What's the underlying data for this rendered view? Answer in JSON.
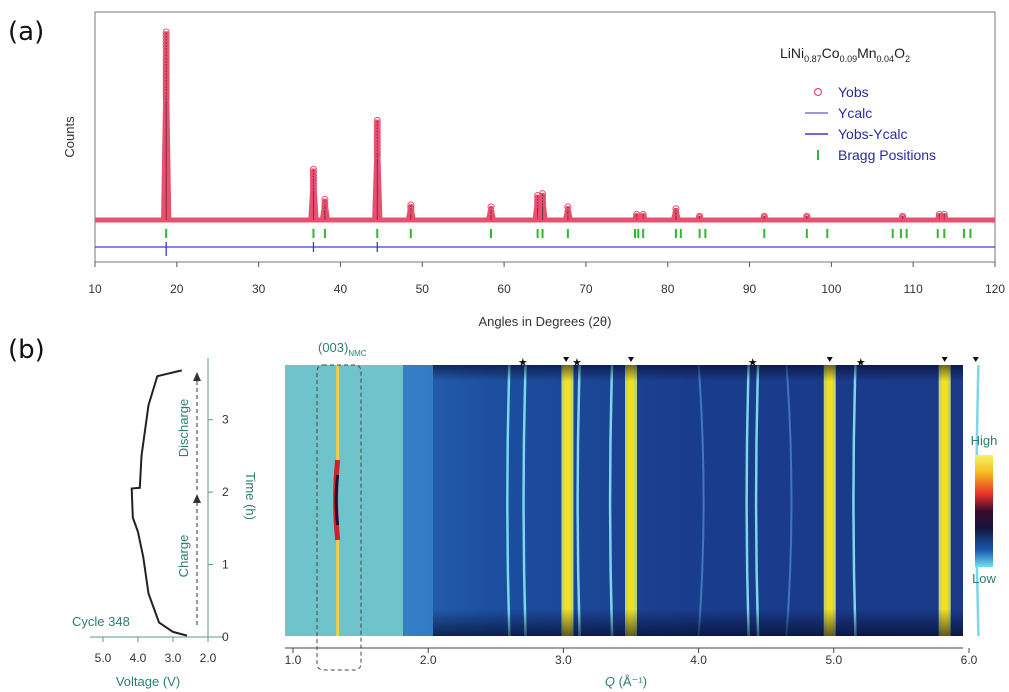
{
  "chart_data": [
    {
      "type": "line",
      "panel_label": "(a)",
      "xlabel": "Angles in Degrees (2θ)",
      "ylabel": "Counts",
      "xlim": [
        10,
        120
      ],
      "xticks": [
        10,
        20,
        30,
        40,
        50,
        60,
        70,
        80,
        90,
        100,
        110,
        120
      ],
      "compound": {
        "base": "LiNi",
        "s1": "0.87",
        "mid1": "Co",
        "s2": "0.09",
        "mid2": "Mn",
        "s3": "0.04",
        "end": "O",
        "s4": "2"
      },
      "legend": [
        "Yobs",
        "Ycalc",
        "Yobs-Ycalc",
        "Bragg Positions"
      ],
      "colors": {
        "yobs": "#e8506e",
        "ycalc": "#7a2a4a",
        "diff": "#3a3ad0",
        "bragg": "#2fb82f"
      },
      "peaks": [
        {
          "x": 18.7,
          "y": 1.0
        },
        {
          "x": 36.7,
          "y": 0.27
        },
        {
          "x": 38.1,
          "y": 0.11
        },
        {
          "x": 44.5,
          "y": 0.53
        },
        {
          "x": 48.6,
          "y": 0.08
        },
        {
          "x": 58.4,
          "y": 0.07
        },
        {
          "x": 64.1,
          "y": 0.13
        },
        {
          "x": 64.7,
          "y": 0.14
        },
        {
          "x": 67.8,
          "y": 0.07
        },
        {
          "x": 76.2,
          "y": 0.03
        },
        {
          "x": 77.0,
          "y": 0.03
        },
        {
          "x": 81.0,
          "y": 0.06
        },
        {
          "x": 83.9,
          "y": 0.02
        },
        {
          "x": 91.8,
          "y": 0.02
        },
        {
          "x": 97.0,
          "y": 0.02
        },
        {
          "x": 108.7,
          "y": 0.02
        },
        {
          "x": 113.2,
          "y": 0.03
        },
        {
          "x": 113.8,
          "y": 0.03
        }
      ],
      "bragg_positions": [
        18.7,
        36.7,
        38.1,
        44.5,
        48.6,
        58.4,
        64.1,
        64.7,
        67.8,
        76.0,
        76.4,
        77.0,
        81.0,
        81.6,
        83.9,
        84.6,
        91.8,
        97.0,
        99.5,
        107.5,
        108.5,
        109.2,
        113.0,
        113.8,
        116.2,
        117.0
      ]
    },
    {
      "type": "line",
      "panel_label": "(b)",
      "xlabel": "Voltage (V)",
      "ylabel": "Time (h)",
      "xlim": [
        5.0,
        2.0
      ],
      "ylim": [
        0,
        3.7
      ],
      "xticks": [
        "5.0",
        "4.0",
        "3.0",
        "2.0"
      ],
      "yticks": [
        "0",
        "1",
        "2",
        "3"
      ],
      "annotations": {
        "cycle": "Cycle 348",
        "charge": "Charge",
        "discharge": "Discharge"
      },
      "curve": [
        {
          "v": 2.6,
          "t": 0.02
        },
        {
          "v": 3.0,
          "t": 0.07
        },
        {
          "v": 3.4,
          "t": 0.2
        },
        {
          "v": 3.7,
          "t": 0.6
        },
        {
          "v": 3.85,
          "t": 1.1
        },
        {
          "v": 4.0,
          "t": 1.45
        },
        {
          "v": 4.15,
          "t": 1.65
        },
        {
          "v": 4.18,
          "t": 2.05
        },
        {
          "v": 3.95,
          "t": 2.06
        },
        {
          "v": 3.9,
          "t": 2.5
        },
        {
          "v": 3.7,
          "t": 3.2
        },
        {
          "v": 3.45,
          "t": 3.6
        },
        {
          "v": 2.75,
          "t": 3.68
        }
      ]
    },
    {
      "type": "heatmap",
      "xlabel": "Q (Å⁻¹)",
      "xlabel_parts": {
        "sym": "Q",
        "unit": " (Å⁻¹)"
      },
      "xlim": [
        0.85,
        6.2
      ],
      "xticks": [
        "1.0",
        "2.0",
        "3.0",
        "4.0",
        "5.0",
        "6.0"
      ],
      "annotation": {
        "base": "(003)",
        "sub": "NMC"
      },
      "colorbar": {
        "high": "High",
        "low": "Low"
      },
      "lines": [
        {
          "q": 1.33,
          "kind": "red"
        },
        {
          "q": 2.6,
          "kind": "cyan"
        },
        {
          "q": 2.72,
          "kind": "cyan"
        },
        {
          "q": 3.03,
          "kind": "yellow"
        },
        {
          "q": 3.12,
          "kind": "cyan"
        },
        {
          "q": 3.36,
          "kind": "cyan"
        },
        {
          "q": 3.5,
          "kind": "yellow"
        },
        {
          "q": 4.0,
          "kind": "faint"
        },
        {
          "q": 4.37,
          "kind": "cyan"
        },
        {
          "q": 4.44,
          "kind": "cyan"
        },
        {
          "q": 4.65,
          "kind": "faint"
        },
        {
          "q": 4.97,
          "kind": "yellow"
        },
        {
          "q": 5.16,
          "kind": "cyan"
        },
        {
          "q": 5.82,
          "kind": "yellow"
        },
        {
          "q": 6.07,
          "kind": "cyan"
        }
      ],
      "markers": [
        {
          "q": 2.7,
          "shape": "star"
        },
        {
          "q": 3.02,
          "shape": "arrow"
        },
        {
          "q": 3.1,
          "shape": "star"
        },
        {
          "q": 3.5,
          "shape": "arrow"
        },
        {
          "q": 4.4,
          "shape": "star"
        },
        {
          "q": 4.97,
          "shape": "arrow"
        },
        {
          "q": 5.2,
          "shape": "star"
        },
        {
          "q": 5.82,
          "shape": "arrow"
        },
        {
          "q": 6.05,
          "shape": "arrow"
        }
      ]
    }
  ]
}
